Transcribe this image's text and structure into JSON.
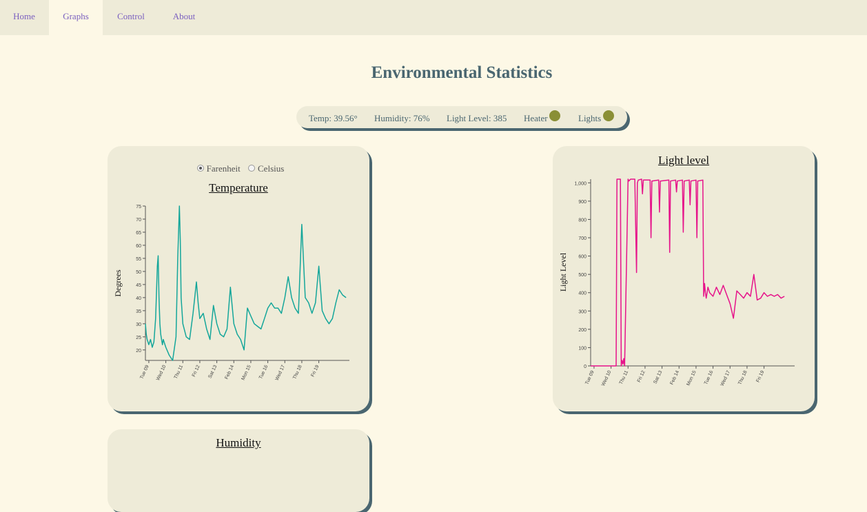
{
  "nav": {
    "tabs": [
      {
        "label": "Home",
        "active": false
      },
      {
        "label": "Graphs",
        "active": true
      },
      {
        "label": "Control",
        "active": false
      },
      {
        "label": "About",
        "active": false
      }
    ]
  },
  "page": {
    "title": "Environmental Statistics"
  },
  "status": {
    "temp": "Temp: 39.56°",
    "humidity": "Humidity: 76%",
    "light": "Light Level: 385",
    "heater_label": "Heater",
    "lights_label": "Lights",
    "indicator_color": "#8a8f36"
  },
  "temperature_card": {
    "unit_options": [
      "Farenheit",
      "Celsius"
    ],
    "selected_unit": "Farenheit"
  },
  "humidity_card": {
    "title": "Humidity"
  },
  "chart_data": [
    {
      "type": "line",
      "title": "Temperature",
      "ylabel": "Degrees",
      "xlabel": "",
      "ylim": [
        16,
        75
      ],
      "yticks": [
        20,
        25,
        30,
        35,
        40,
        45,
        50,
        55,
        60,
        65,
        70,
        75
      ],
      "xticks": [
        "Tue 09",
        "Wed 10",
        "Thu 11",
        "Fri 12",
        "Sat 13",
        "Feb 14",
        "Mon 15",
        "Tue 16",
        "Wed 17",
        "Thu 18",
        "Fri 19"
      ],
      "color": "#14a69a",
      "series": [
        {
          "x": [
            0,
            0.05,
            0.1,
            0.2,
            0.3,
            0.4,
            0.5,
            0.6,
            0.7,
            0.75,
            0.8,
            0.85,
            0.9,
            0.95,
            1.0,
            1.05,
            1.2,
            1.4,
            1.6,
            1.8,
            1.9,
            2.0,
            2.05,
            2.1,
            2.2,
            2.4,
            2.6,
            2.8,
            3.0,
            3.1,
            3.2,
            3.4,
            3.6,
            3.8,
            4.0,
            4.2,
            4.4,
            4.6,
            4.8,
            5.0,
            5.2,
            5.4,
            5.6,
            5.8,
            6.0,
            6.2,
            6.4,
            6.6,
            6.8,
            7.0,
            7.2,
            7.4,
            7.6,
            7.8,
            8.0,
            8.2,
            8.4,
            8.6,
            8.8,
            9.0,
            9.2,
            9.4,
            9.6,
            9.8,
            10.0,
            10.2,
            10.4,
            10.6,
            10.8,
            11.0,
            11.2,
            11.4,
            11.6,
            11.8
          ],
          "y": [
            30,
            26,
            24,
            22,
            24,
            21,
            23,
            32,
            52,
            56,
            40,
            30,
            26,
            24,
            22,
            24,
            21,
            18,
            16,
            25,
            55,
            75,
            62,
            40,
            30,
            25,
            24,
            34,
            46,
            38,
            32,
            34,
            28,
            24,
            37,
            30,
            26,
            25,
            28,
            44,
            30,
            26,
            24,
            20,
            36,
            33,
            30,
            29,
            28,
            32,
            36,
            38,
            36,
            36,
            34,
            40,
            48,
            40,
            36,
            34,
            68,
            40,
            38,
            34,
            38,
            52,
            35,
            32,
            30,
            32,
            38,
            43,
            41,
            40
          ]
        }
      ]
    },
    {
      "type": "line",
      "title": "Light level",
      "ylabel": "Light Level",
      "xlabel": "",
      "ylim": [
        0,
        1020
      ],
      "yticks": [
        0,
        100,
        200,
        300,
        400,
        500,
        600,
        700,
        800,
        900,
        1000
      ],
      "ytick_labels": [
        "0",
        "100",
        "200",
        "300",
        "400",
        "500",
        "600",
        "700",
        "800",
        "900",
        "1,000"
      ],
      "xticks": [
        "Tue 09",
        "Wed 10",
        "Thu 11",
        "Fri 12",
        "Sat 13",
        "Feb 14",
        "Mon 15",
        "Tue 16",
        "Wed 17",
        "Thu 18",
        "Fri 19"
      ],
      "color": "#e6138a",
      "series": [
        {
          "x": [
            0,
            1.5,
            1.55,
            1.6,
            1.75,
            1.8,
            1.85,
            1.9,
            1.95,
            2.0,
            2.2,
            2.25,
            2.3,
            2.35,
            2.6,
            2.7,
            2.75,
            2.8,
            3.0,
            3.05,
            3.1,
            3.5,
            3.55,
            3.6,
            4.0,
            4.05,
            4.1,
            4.6,
            4.65,
            4.7,
            5.0,
            5.05,
            5.1,
            5.4,
            5.45,
            5.5,
            5.8,
            5.85,
            5.9,
            6.2,
            6.25,
            6.3,
            6.6,
            6.65,
            6.7,
            6.75,
            6.8,
            6.9,
            7.0,
            7.2,
            7.4,
            7.6,
            7.8,
            8.0,
            8.2,
            8.4,
            8.6,
            8.8,
            9.0,
            9.2,
            9.4,
            9.6,
            9.8,
            10.0,
            10.2,
            10.4,
            10.6,
            10.8,
            11.0,
            11.2,
            11.4
          ],
          "y": [
            0,
            0,
            1020,
            1020,
            1020,
            0,
            30,
            10,
            40,
            0,
            1020,
            1010,
            1015,
            1020,
            1020,
            510,
            1000,
            1015,
            1020,
            940,
            1015,
            1015,
            700,
            1010,
            1015,
            840,
            1010,
            1015,
            620,
            1010,
            1015,
            950,
            1010,
            1015,
            730,
            1010,
            1015,
            880,
            1010,
            1015,
            700,
            1010,
            1015,
            380,
            450,
            400,
            370,
            430,
            400,
            380,
            430,
            390,
            440,
            390,
            340,
            260,
            410,
            390,
            370,
            400,
            380,
            500,
            360,
            370,
            400,
            380,
            390,
            380,
            390,
            370,
            380
          ]
        }
      ]
    }
  ]
}
